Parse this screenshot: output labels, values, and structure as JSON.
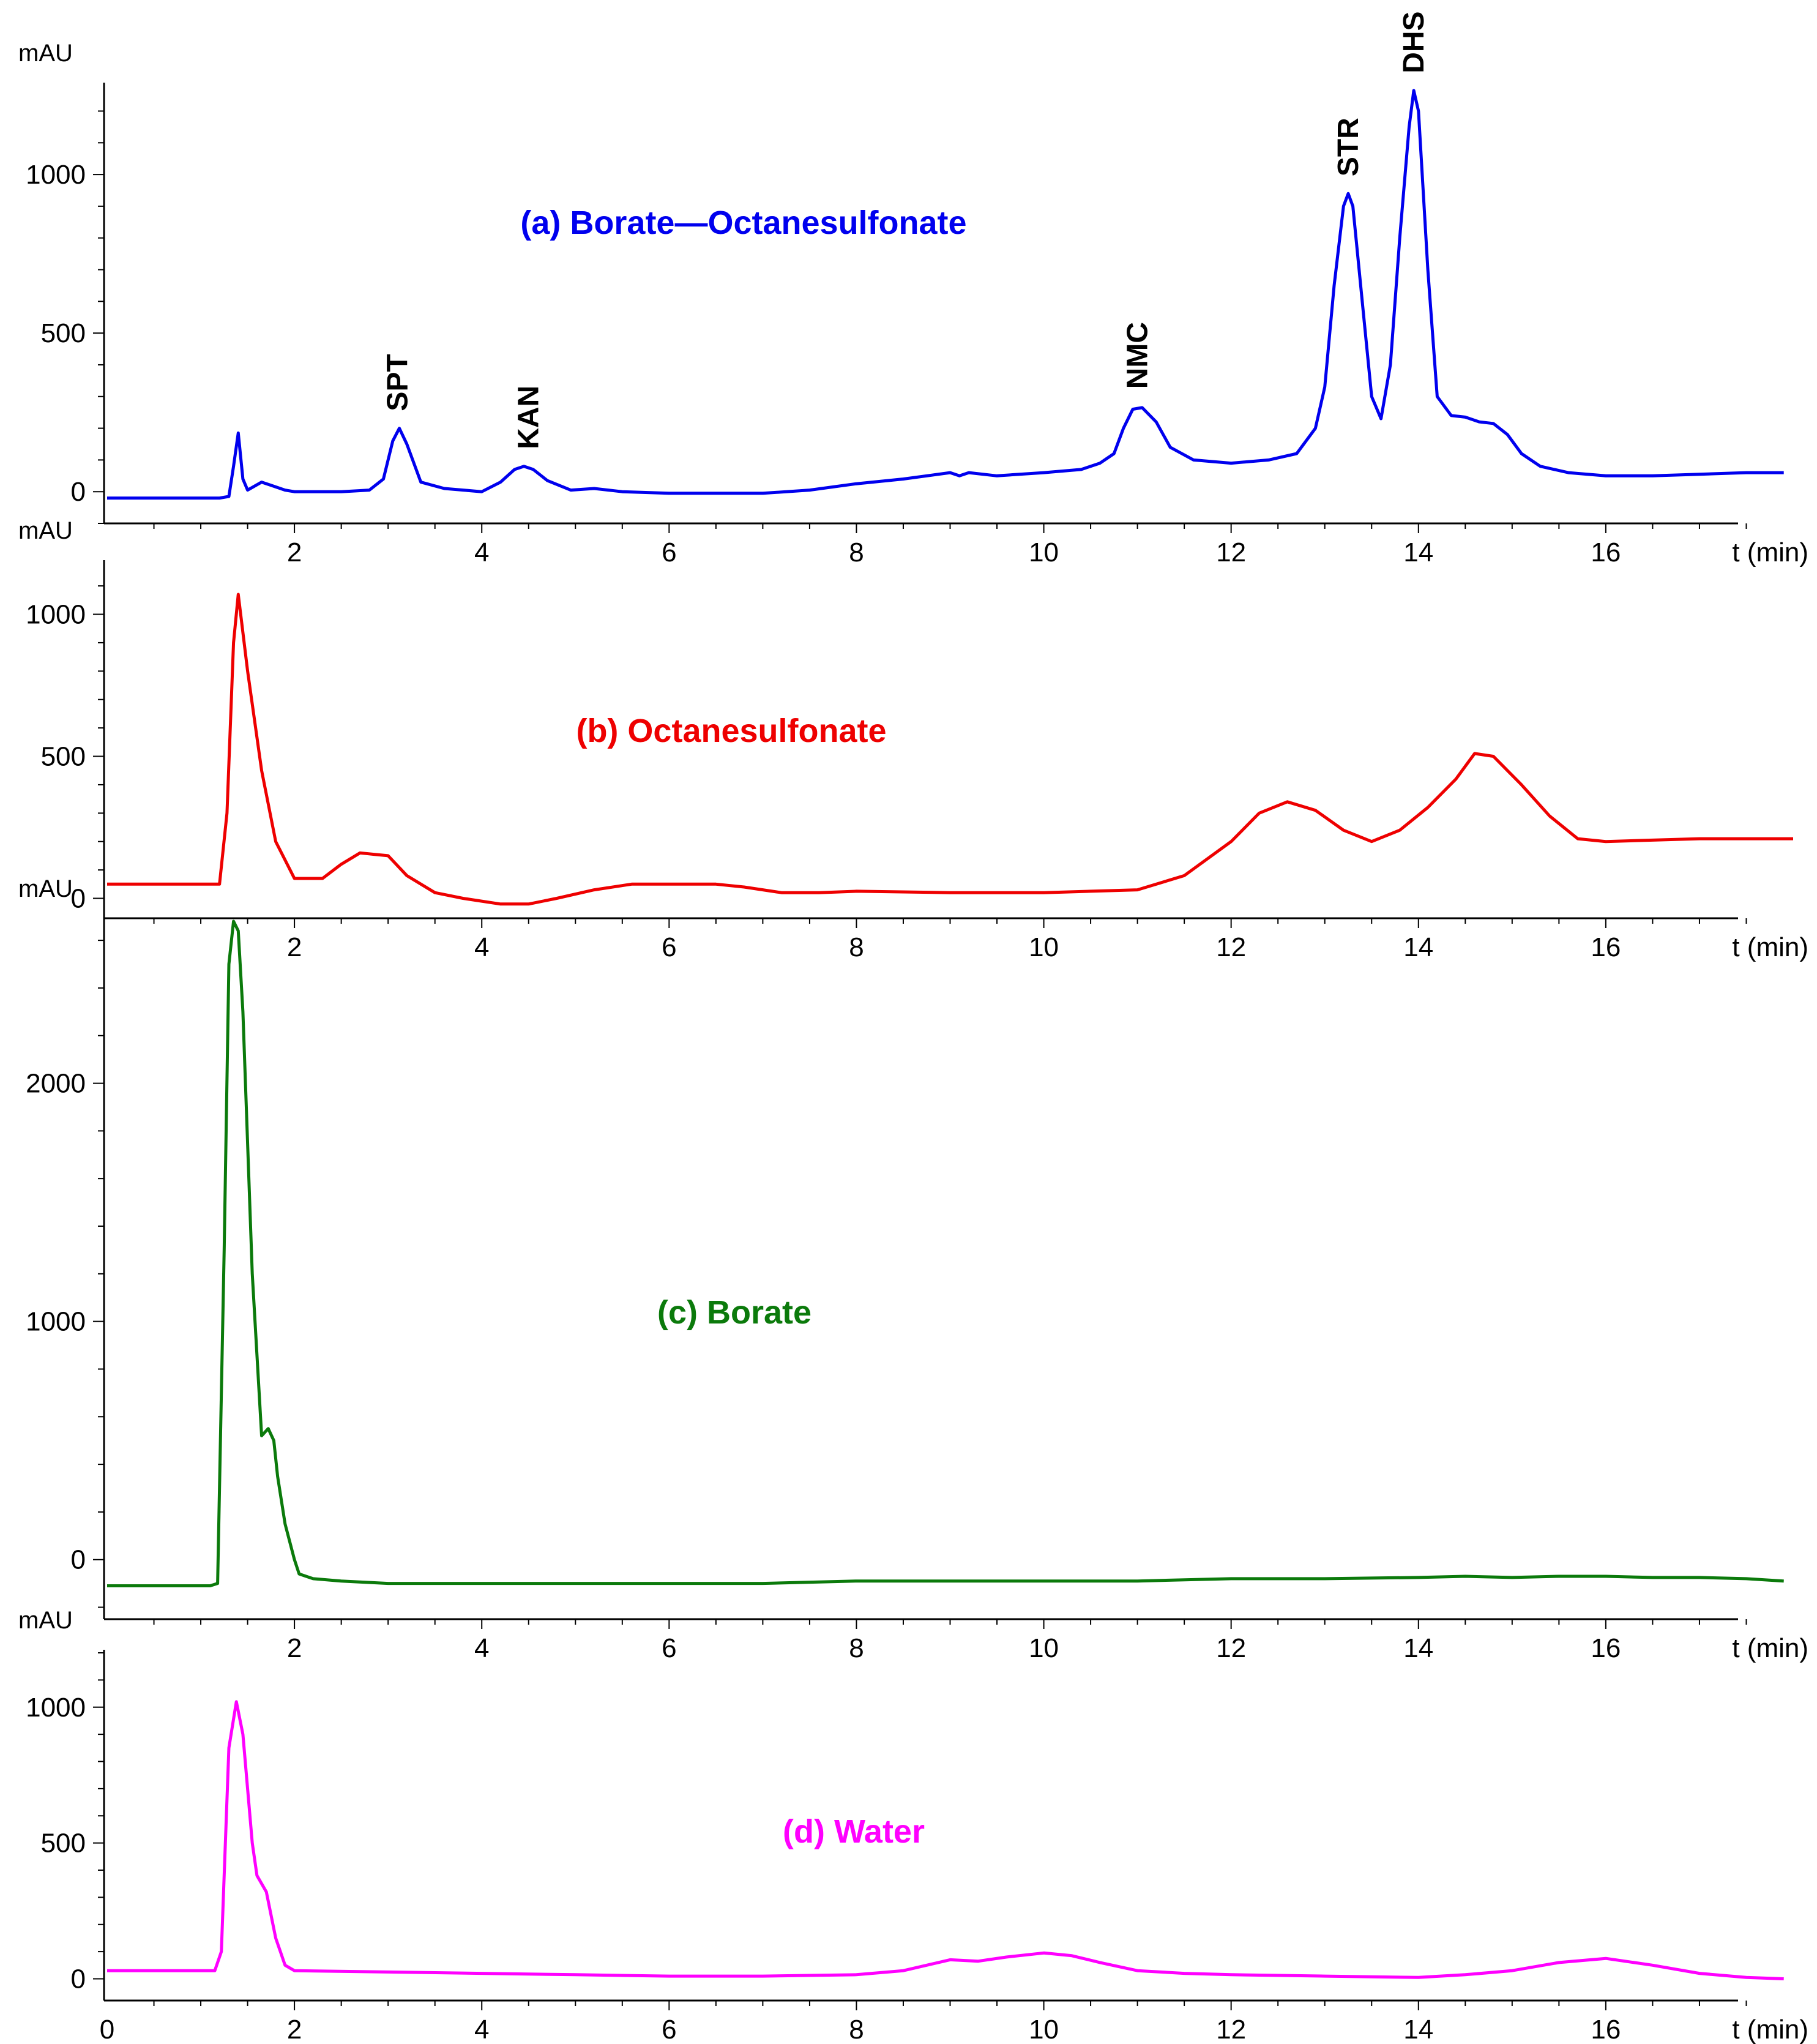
{
  "chart_data": [
    {
      "type": "line",
      "title": "(a) Borate—Octanesulfonate",
      "color": "#0000ee",
      "ylabel": "mAU",
      "xlabel": "t (min)",
      "xlim": [
        0,
        18
      ],
      "ylim": [
        -100,
        1280
      ],
      "yticks": [
        {
          "value": 0,
          "label": "0"
        },
        {
          "value": 500,
          "label": "500"
        },
        {
          "value": 1000,
          "label": "1000"
        }
      ],
      "xticks": [
        {
          "value": 2,
          "label": "2"
        },
        {
          "value": 4,
          "label": "4"
        },
        {
          "value": 6,
          "label": "6"
        },
        {
          "value": 8,
          "label": "8"
        },
        {
          "value": 10,
          "label": "10"
        },
        {
          "value": 12,
          "label": "12"
        },
        {
          "value": 14,
          "label": "14"
        },
        {
          "value": 16,
          "label": "16"
        }
      ],
      "peaks": [
        {
          "label": "SPT",
          "x": 3.1,
          "y": 200
        },
        {
          "label": "KAN",
          "x": 4.5,
          "y": 80
        },
        {
          "label": "NMC",
          "x": 11.0,
          "y": 270
        },
        {
          "label": "STR",
          "x": 13.25,
          "y": 940
        },
        {
          "label": "DHS",
          "x": 13.95,
          "y": 1265
        }
      ],
      "x": [
        0.0,
        1.2,
        1.3,
        1.35,
        1.4,
        1.45,
        1.5,
        1.65,
        1.75,
        1.9,
        2.0,
        2.5,
        2.8,
        2.95,
        3.05,
        3.12,
        3.2,
        3.35,
        3.6,
        4.0,
        4.2,
        4.35,
        4.45,
        4.55,
        4.7,
        4.95,
        5.2,
        5.5,
        6.0,
        6.5,
        7.0,
        7.5,
        8.0,
        8.5,
        9.0,
        9.1,
        9.2,
        9.5,
        10.0,
        10.4,
        10.6,
        10.75,
        10.85,
        10.95,
        11.05,
        11.2,
        11.35,
        11.6,
        12.0,
        12.4,
        12.7,
        12.9,
        13.0,
        13.1,
        13.2,
        13.25,
        13.3,
        13.4,
        13.5,
        13.6,
        13.7,
        13.8,
        13.9,
        13.95,
        14.0,
        14.1,
        14.2,
        14.35,
        14.5,
        14.65,
        14.8,
        14.95,
        15.1,
        15.3,
        15.6,
        16.0,
        16.5,
        17.0,
        17.5,
        17.9
      ],
      "y": [
        -20,
        -20,
        -15,
        80,
        185,
        40,
        5,
        30,
        20,
        5,
        0,
        0,
        5,
        40,
        160,
        200,
        150,
        30,
        10,
        0,
        30,
        70,
        80,
        70,
        35,
        5,
        10,
        0,
        -5,
        -5,
        -5,
        5,
        25,
        40,
        60,
        50,
        60,
        50,
        60,
        70,
        90,
        120,
        200,
        260,
        265,
        220,
        140,
        100,
        90,
        100,
        120,
        200,
        330,
        650,
        900,
        940,
        900,
        600,
        300,
        230,
        400,
        800,
        1150,
        1265,
        1200,
        700,
        300,
        240,
        235,
        220,
        215,
        180,
        120,
        80,
        60,
        50,
        50,
        55,
        60,
        60
      ]
    },
    {
      "type": "line",
      "title": "(b) Octanesulfonate",
      "color": "#ee0000",
      "ylabel": "mAU",
      "xlabel": "t (min)",
      "xlim": [
        0,
        18
      ],
      "ylim": [
        -70,
        1180
      ],
      "yticks": [
        {
          "value": 0,
          "label": "0"
        },
        {
          "value": 500,
          "label": "500"
        },
        {
          "value": 1000,
          "label": "1000"
        }
      ],
      "xticks": [
        {
          "value": 2,
          "label": "2"
        },
        {
          "value": 4,
          "label": "4"
        },
        {
          "value": 6,
          "label": "6"
        },
        {
          "value": 8,
          "label": "8"
        },
        {
          "value": 10,
          "label": "10"
        },
        {
          "value": 12,
          "label": "12"
        },
        {
          "value": 14,
          "label": "14"
        },
        {
          "value": 16,
          "label": "16"
        }
      ],
      "x": [
        0.0,
        1.1,
        1.2,
        1.28,
        1.35,
        1.4,
        1.5,
        1.65,
        1.8,
        2.0,
        2.3,
        2.5,
        2.7,
        2.85,
        3.0,
        3.2,
        3.5,
        3.8,
        4.2,
        4.5,
        4.8,
        5.2,
        5.6,
        6.0,
        6.5,
        6.8,
        7.2,
        7.6,
        8.0,
        9.0,
        10.0,
        11.0,
        11.5,
        12.0,
        12.3,
        12.6,
        12.9,
        13.2,
        13.5,
        13.8,
        14.1,
        14.4,
        14.6,
        14.8,
        15.1,
        15.4,
        15.7,
        16.0,
        16.5,
        17.0,
        17.5,
        18.0
      ],
      "y": [
        50,
        50,
        50,
        300,
        900,
        1070,
        800,
        450,
        200,
        70,
        70,
        120,
        160,
        155,
        150,
        80,
        20,
        0,
        -20,
        -20,
        0,
        30,
        50,
        50,
        50,
        40,
        20,
        20,
        25,
        20,
        20,
        30,
        80,
        200,
        300,
        340,
        310,
        240,
        200,
        240,
        320,
        420,
        510,
        500,
        400,
        290,
        210,
        200,
        205,
        210,
        210,
        210
      ]
    },
    {
      "type": "line",
      "title": "(c) Borate",
      "color": "#0b7a0b",
      "ylabel": "mAU",
      "xlabel": "t (min)",
      "xlim": [
        0,
        18
      ],
      "ylim": [
        -250,
        2680
      ],
      "yticks": [
        {
          "value": 0,
          "label": "0"
        },
        {
          "value": 1000,
          "label": "1000"
        },
        {
          "value": 2000,
          "label": "2000"
        }
      ],
      "xticks": [
        {
          "value": 2,
          "label": "2"
        },
        {
          "value": 4,
          "label": "4"
        },
        {
          "value": 6,
          "label": "6"
        },
        {
          "value": 8,
          "label": "8"
        },
        {
          "value": 10,
          "label": "10"
        },
        {
          "value": 12,
          "label": "12"
        },
        {
          "value": 14,
          "label": "14"
        },
        {
          "value": 16,
          "label": "16"
        }
      ],
      "x": [
        0.0,
        1.0,
        1.1,
        1.18,
        1.25,
        1.3,
        1.35,
        1.4,
        1.45,
        1.55,
        1.65,
        1.72,
        1.78,
        1.82,
        1.9,
        2.0,
        2.05,
        2.2,
        2.5,
        3.0,
        4.0,
        5.0,
        6.0,
        7.0,
        8.0,
        9.0,
        10.0,
        11.0,
        12.0,
        13.0,
        14.0,
        14.5,
        15.0,
        15.5,
        16.0,
        16.5,
        17.0,
        17.5,
        17.9
      ],
      "y": [
        -110,
        -110,
        -110,
        -100,
        1300,
        2500,
        2680,
        2640,
        2300,
        1200,
        520,
        550,
        500,
        350,
        150,
        0,
        -60,
        -80,
        -90,
        -100,
        -100,
        -100,
        -100,
        -100,
        -90,
        -90,
        -90,
        -90,
        -80,
        -80,
        -75,
        -70,
        -75,
        -70,
        -70,
        -75,
        -75,
        -80,
        -90
      ]
    },
    {
      "type": "line",
      "title": "(d) Water",
      "color": "#ff00ff",
      "ylabel": "mAU",
      "xlabel": "t (min)",
      "xlim": [
        0,
        18
      ],
      "ylim": [
        -80,
        1200
      ],
      "yticks": [
        {
          "value": 0,
          "label": "0"
        },
        {
          "value": 500,
          "label": "500"
        },
        {
          "value": 1000,
          "label": "1000"
        }
      ],
      "xticks": [
        {
          "value": 0,
          "label": "0"
        },
        {
          "value": 2,
          "label": "2"
        },
        {
          "value": 4,
          "label": "4"
        },
        {
          "value": 6,
          "label": "6"
        },
        {
          "value": 8,
          "label": "8"
        },
        {
          "value": 10,
          "label": "10"
        },
        {
          "value": 12,
          "label": "12"
        },
        {
          "value": 14,
          "label": "14"
        },
        {
          "value": 16,
          "label": "16"
        }
      ],
      "x": [
        0.0,
        1.15,
        1.22,
        1.3,
        1.38,
        1.45,
        1.55,
        1.6,
        1.7,
        1.8,
        1.9,
        2.0,
        3.0,
        4.0,
        5.0,
        6.0,
        7.0,
        8.0,
        8.5,
        9.0,
        9.3,
        9.6,
        10.0,
        10.3,
        10.6,
        11.0,
        11.5,
        12.0,
        13.0,
        14.0,
        14.5,
        15.0,
        15.5,
        16.0,
        16.5,
        17.0,
        17.5,
        17.9
      ],
      "y": [
        30,
        30,
        100,
        850,
        1020,
        900,
        500,
        380,
        320,
        150,
        50,
        30,
        25,
        20,
        15,
        10,
        10,
        15,
        30,
        70,
        65,
        80,
        95,
        85,
        60,
        30,
        20,
        15,
        10,
        5,
        15,
        30,
        60,
        75,
        50,
        20,
        5,
        0
      ]
    }
  ]
}
